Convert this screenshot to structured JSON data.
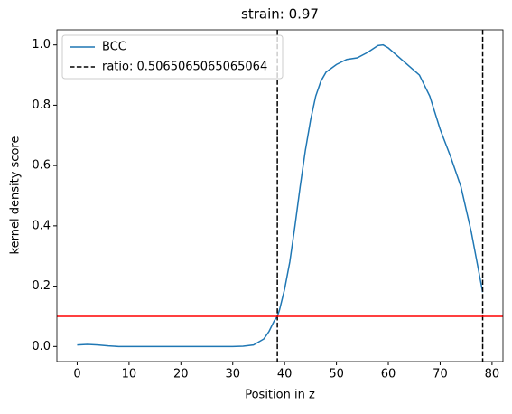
{
  "chart_data": {
    "type": "line",
    "title": "strain: 0.97",
    "x_label": "Position in z",
    "y_label": "kernel density score",
    "x": [
      0,
      2,
      4,
      6,
      8,
      10,
      15,
      20,
      25,
      30,
      32,
      34,
      36,
      37,
      38,
      38.6,
      39,
      40,
      41,
      42,
      43,
      44,
      45,
      46,
      47,
      48,
      50,
      52,
      54,
      56,
      58,
      59,
      60,
      62,
      64,
      66,
      68,
      70,
      72,
      74,
      76,
      78.2
    ],
    "series": [
      {
        "name": "BCC",
        "color": "#1f77b4",
        "values": [
          0.005,
          0.007,
          0.005,
          0.002,
          0.0,
          0.0,
          0.0,
          0.0,
          0.0,
          0.0,
          0.001,
          0.005,
          0.025,
          0.05,
          0.085,
          0.1,
          0.12,
          0.19,
          0.28,
          0.4,
          0.53,
          0.65,
          0.75,
          0.83,
          0.88,
          0.91,
          0.935,
          0.952,
          0.957,
          0.975,
          0.998,
          1.0,
          0.99,
          0.96,
          0.93,
          0.9,
          0.83,
          0.72,
          0.63,
          0.53,
          0.38,
          0.18
        ]
      }
    ],
    "vlines": {
      "name": "ratio: 0.5065065065065064",
      "color": "#000000",
      "x": [
        38.6,
        78.2
      ]
    },
    "hline": {
      "y": 0.1,
      "color": "#ff0000"
    },
    "xlim": [
      -3.91,
      82.11
    ],
    "ylim": [
      -0.05,
      1.05
    ],
    "xticks": [
      0,
      10,
      20,
      30,
      40,
      50,
      60,
      70,
      80
    ],
    "yticks": [
      {
        "value": 0,
        "label": "0.0"
      },
      {
        "value": 0.2,
        "label": "0.2"
      },
      {
        "value": 0.4,
        "label": "0.4"
      },
      {
        "value": 0.6,
        "label": "0.6"
      },
      {
        "value": 0.8,
        "label": "0.8"
      },
      {
        "value": 1.0,
        "label": "1.0"
      }
    ],
    "legend": "upper left",
    "grid": false
  }
}
